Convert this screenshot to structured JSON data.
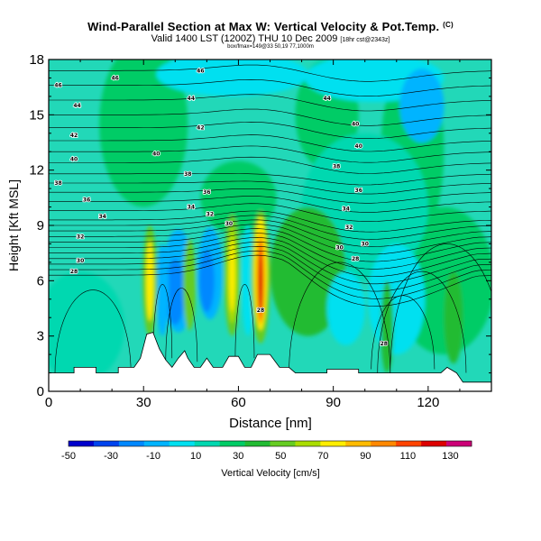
{
  "header": {
    "title": "Wind-Parallel Section at Max W: Vertical Velocity & Pot.Temp.",
    "copyright": "(C)",
    "valid_line": "Valid 1400 LST (1200Z) THU 10 Dec 2009",
    "run_info": "[18hr cst@2343z]",
    "sub_line": "box/fmax=149@33 50,19 77,1000m"
  },
  "chart_data": {
    "type": "heatmap",
    "xlabel": "Distance [nm]",
    "ylabel": "Height [Kft MSL]",
    "xlim": [
      0,
      140
    ],
    "ylim": [
      0,
      18
    ],
    "x_ticks": [
      0,
      30,
      60,
      90,
      120
    ],
    "y_ticks": [
      0,
      3,
      6,
      9,
      12,
      15,
      18
    ],
    "colorbar": {
      "label": "Vertical Velocity [cm/s]",
      "tick_labels": [
        -50,
        -30,
        -10,
        10,
        30,
        50,
        70,
        90,
        110,
        130
      ],
      "range": [
        -50,
        140
      ],
      "colors": [
        "#0000cc",
        "#0044ee",
        "#0088ff",
        "#00b4ff",
        "#00e0f0",
        "#00d8b0",
        "#00cc66",
        "#22bb33",
        "#66cc22",
        "#aadd00",
        "#ffee00",
        "#ffbb00",
        "#ff8800",
        "#ff4400",
        "#dd0000",
        "#cc0077"
      ]
    },
    "terrain_kft": [
      {
        "x": 0,
        "y": 1.0
      },
      {
        "x": 8,
        "y": 1.0
      },
      {
        "x": 8,
        "y": 1.3
      },
      {
        "x": 15,
        "y": 1.3
      },
      {
        "x": 15,
        "y": 1.0
      },
      {
        "x": 22,
        "y": 1.0
      },
      {
        "x": 22,
        "y": 1.3
      },
      {
        "x": 27,
        "y": 1.3
      },
      {
        "x": 29,
        "y": 1.8
      },
      {
        "x": 31,
        "y": 3.1
      },
      {
        "x": 33,
        "y": 3.2
      },
      {
        "x": 35,
        "y": 2.3
      },
      {
        "x": 37,
        "y": 1.7
      },
      {
        "x": 39,
        "y": 1.3
      },
      {
        "x": 41,
        "y": 1.8
      },
      {
        "x": 43,
        "y": 2.2
      },
      {
        "x": 44,
        "y": 1.8
      },
      {
        "x": 46,
        "y": 1.3
      },
      {
        "x": 48,
        "y": 1.3
      },
      {
        "x": 50,
        "y": 1.8
      },
      {
        "x": 52,
        "y": 1.3
      },
      {
        "x": 55,
        "y": 1.3
      },
      {
        "x": 57,
        "y": 1.9
      },
      {
        "x": 60,
        "y": 1.9
      },
      {
        "x": 62,
        "y": 1.3
      },
      {
        "x": 64,
        "y": 1.3
      },
      {
        "x": 66,
        "y": 2.0
      },
      {
        "x": 70,
        "y": 2.0
      },
      {
        "x": 73,
        "y": 1.3
      },
      {
        "x": 76,
        "y": 1.3
      },
      {
        "x": 78,
        "y": 1.0
      },
      {
        "x": 88,
        "y": 1.0
      },
      {
        "x": 88,
        "y": 1.2
      },
      {
        "x": 98,
        "y": 1.2
      },
      {
        "x": 98,
        "y": 1.0
      },
      {
        "x": 124,
        "y": 1.0
      },
      {
        "x": 126,
        "y": 1.3
      },
      {
        "x": 129,
        "y": 1.0
      },
      {
        "x": 131,
        "y": 0.5
      },
      {
        "x": 140,
        "y": 0.5
      }
    ],
    "theta_labels": [
      {
        "x": 3,
        "y": 16.6,
        "text": "46"
      },
      {
        "x": 21,
        "y": 17.0,
        "text": "46"
      },
      {
        "x": 48,
        "y": 17.4,
        "text": "46"
      },
      {
        "x": 45,
        "y": 15.9,
        "text": "44"
      },
      {
        "x": 88,
        "y": 15.9,
        "text": "44"
      },
      {
        "x": 9,
        "y": 15.5,
        "text": "44"
      },
      {
        "x": 8,
        "y": 13.9,
        "text": "42"
      },
      {
        "x": 48,
        "y": 14.3,
        "text": "42"
      },
      {
        "x": 97,
        "y": 14.5,
        "text": "40"
      },
      {
        "x": 8,
        "y": 12.6,
        "text": "40"
      },
      {
        "x": 34,
        "y": 12.9,
        "text": "40"
      },
      {
        "x": 98,
        "y": 13.3,
        "text": "40"
      },
      {
        "x": 3,
        "y": 11.3,
        "text": "38"
      },
      {
        "x": 44,
        "y": 11.8,
        "text": "38"
      },
      {
        "x": 91,
        "y": 12.2,
        "text": "38"
      },
      {
        "x": 12,
        "y": 10.4,
        "text": "36"
      },
      {
        "x": 50,
        "y": 10.8,
        "text": "36"
      },
      {
        "x": 98,
        "y": 10.9,
        "text": "36"
      },
      {
        "x": 17,
        "y": 9.5,
        "text": "34"
      },
      {
        "x": 45,
        "y": 10.0,
        "text": "34"
      },
      {
        "x": 94,
        "y": 9.9,
        "text": "34"
      },
      {
        "x": 51,
        "y": 9.6,
        "text": "32"
      },
      {
        "x": 57,
        "y": 9.1,
        "text": "30"
      },
      {
        "x": 95,
        "y": 8.9,
        "text": "32"
      },
      {
        "x": 10,
        "y": 8.4,
        "text": "32"
      },
      {
        "x": 100,
        "y": 8.0,
        "text": "30"
      },
      {
        "x": 92,
        "y": 7.8,
        "text": "30"
      },
      {
        "x": 10,
        "y": 7.1,
        "text": "30"
      },
      {
        "x": 8,
        "y": 6.5,
        "text": "28"
      },
      {
        "x": 97,
        "y": 7.2,
        "text": "28"
      },
      {
        "x": 67,
        "y": 4.4,
        "text": "28"
      },
      {
        "x": 106,
        "y": 2.6,
        "text": "28"
      }
    ]
  }
}
